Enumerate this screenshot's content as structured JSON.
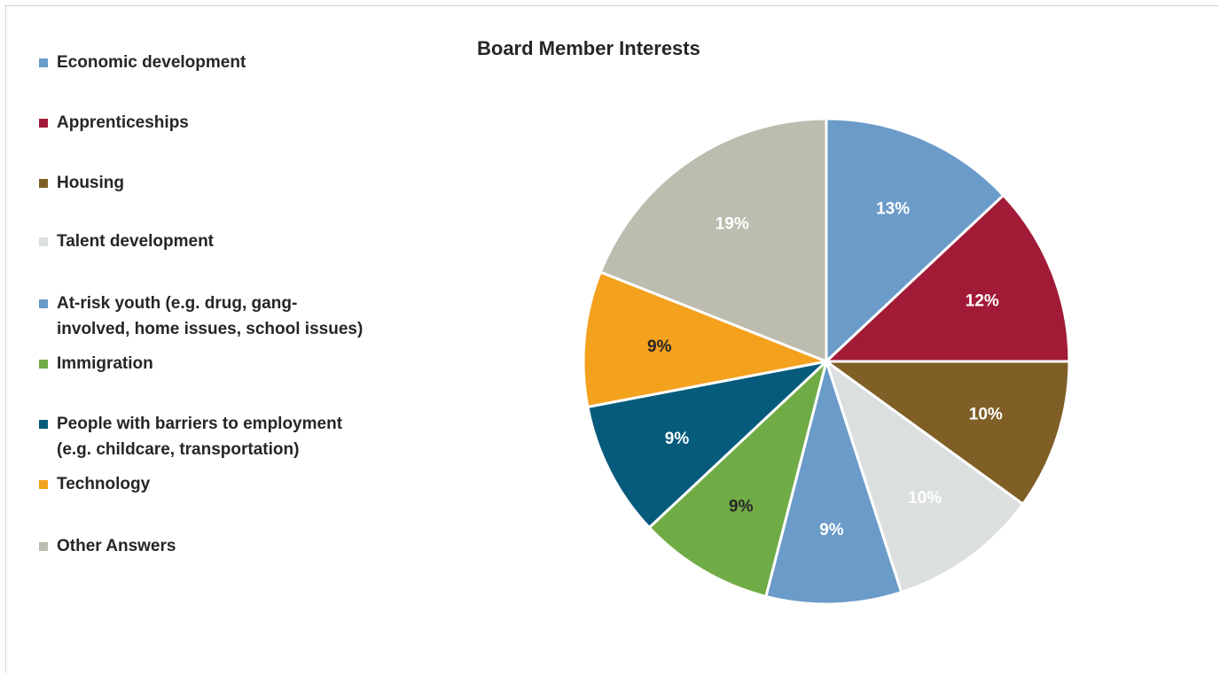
{
  "chart_data": {
    "type": "pie",
    "title": "Board Member Interests",
    "legend_position": "left",
    "slices": [
      {
        "label": "Economic development",
        "value": 13,
        "value_label": "13%",
        "color": "#6b9bc8",
        "label_color": "#ffffff"
      },
      {
        "label": "Apprenticeships",
        "value": 12,
        "value_label": "12%",
        "color": "#a11b37",
        "label_color": "#ffffff"
      },
      {
        "label": "Housing",
        "value": 10,
        "value_label": "10%",
        "color": "#7f5f26",
        "label_color": "#ffffff"
      },
      {
        "label": "Talent development",
        "value": 10,
        "value_label": "10%",
        "color": "#dcdfe0",
        "label_color": "#ffffff"
      },
      {
        "label": "At-risk youth (e.g. drug, gang-involved, home issues, school issues)",
        "value": 9,
        "value_label": "9%",
        "color": "#6b9bc8",
        "label_color": "#ffffff"
      },
      {
        "label": "Immigration",
        "value": 9,
        "value_label": "9%",
        "color": "#70ac46",
        "label_color": "#262626"
      },
      {
        "label": "People with barriers  to employment (e.g. childcare, transportation)",
        "value": 9,
        "value_label": "9%",
        "color": "#065b7c",
        "label_color": "#ffffff"
      },
      {
        "label": "Technology",
        "value": 9,
        "value_label": "9%",
        "color": "#f4a11d",
        "label_color": "#262626"
      },
      {
        "label": "Other Answers",
        "value": 19,
        "value_label": "19%",
        "color": "#bcbcaf",
        "label_color": "#ffffff"
      }
    ],
    "legend_lines": [
      [
        "Economic development"
      ],
      [
        "Apprenticeships"
      ],
      [
        "Housing"
      ],
      [
        "Talent development"
      ],
      [
        "At-risk youth (e.g. drug, gang-",
        "involved, home issues, school issues)"
      ],
      [
        "Immigration"
      ],
      [
        "People with barriers  to employment",
        "(e.g. childcare, transportation)"
      ],
      [
        "Technology"
      ],
      [
        "Other Answers"
      ]
    ]
  }
}
